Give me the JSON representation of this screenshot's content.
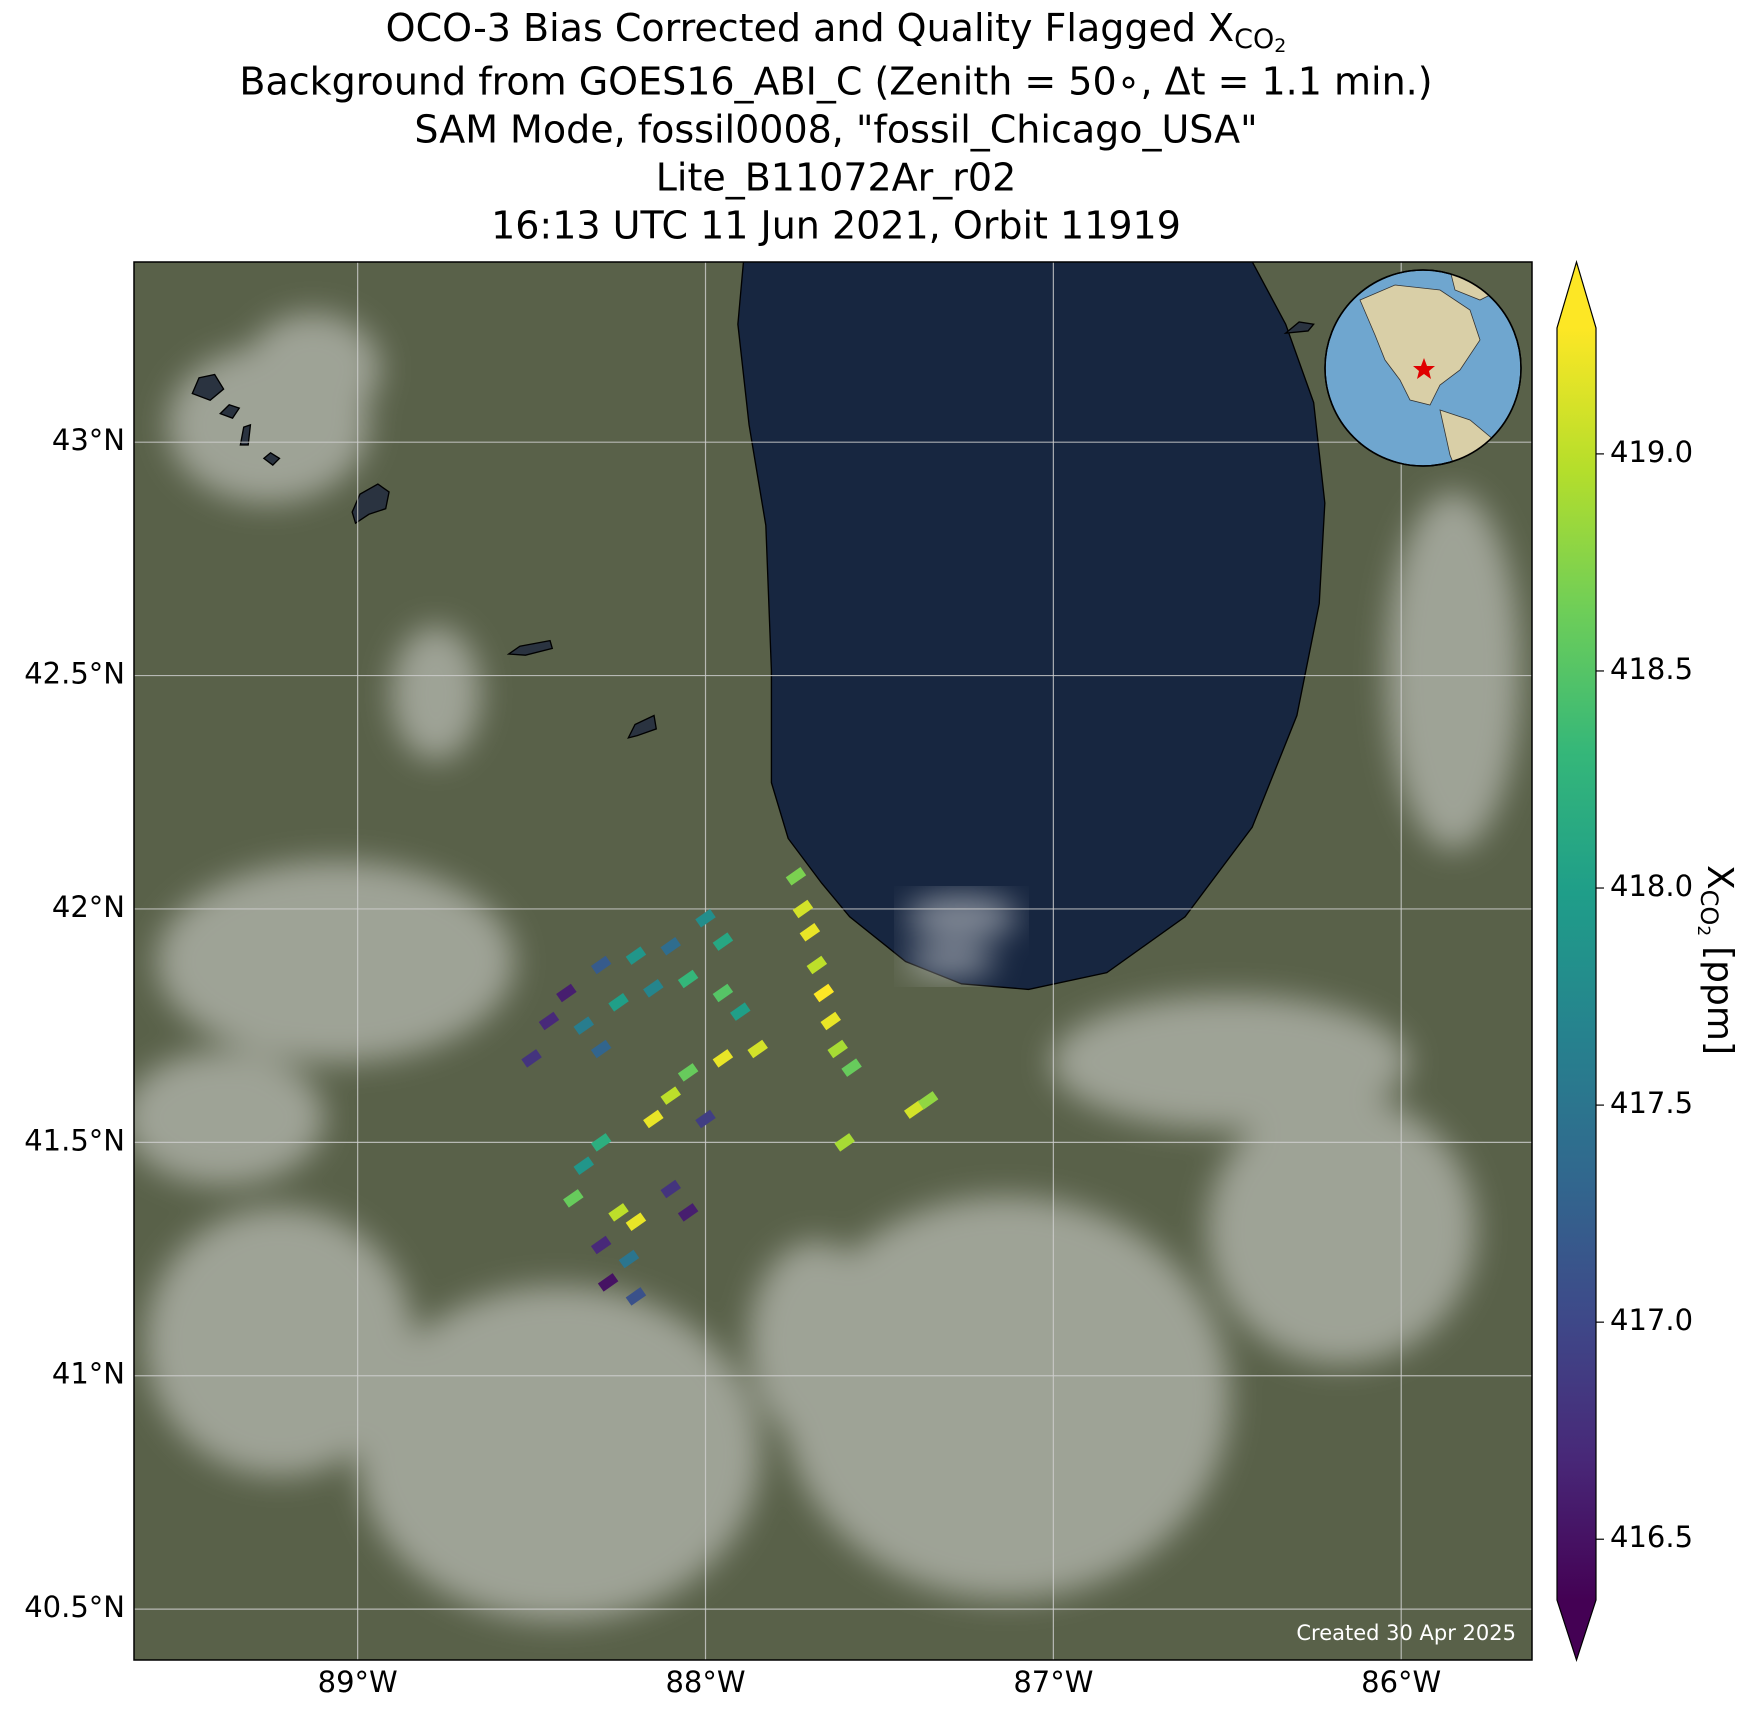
{
  "chart_data": {
    "type": "map",
    "title_line1": "OCO-3 Bias Corrected and Quality Flagged X",
    "title_sub": "CO",
    "title_subsub": "2",
    "title_lines": [
      "Background from GOES16_ABI_C (Zenith = 50∘, Δt =  1.1 min.)",
      "SAM Mode, fossil0008, \"fossil_Chicago_USA\"",
      "Lite_B11072Ar_r02",
      "16:13 UTC 11 Jun 2021, Orbit 11919"
    ],
    "xlim": [
      -89.643,
      -85.624
    ],
    "ylim": [
      40.391,
      43.386
    ],
    "xticks": [
      {
        "value": -89,
        "label": "89°W"
      },
      {
        "value": -88,
        "label": "88°W"
      },
      {
        "value": -87,
        "label": "87°W"
      },
      {
        "value": -86,
        "label": "86°W"
      }
    ],
    "yticks": [
      {
        "value": 40.5,
        "label": "40.5°N"
      },
      {
        "value": 41,
        "label": "41°N"
      },
      {
        "value": 41.5,
        "label": "41.5°N"
      },
      {
        "value": 42,
        "label": "42°N"
      },
      {
        "value": 42.5,
        "label": "42.5°N"
      },
      {
        "value": 43,
        "label": "43°N"
      }
    ],
    "grid": true,
    "colormap": "viridis",
    "clim": [
      416.36,
      419.29
    ],
    "cticks": [
      416.5,
      {
        "value": 417,
        "label": "417.0"
      },
      417.5,
      {
        "value": 418,
        "label": "418.0"
      },
      418.5,
      {
        "value": 419,
        "label": "419.0"
      }
    ],
    "colorbar_label": {
      "symbol": "X",
      "sub": "CO",
      "subsub": "2",
      "units": "[ppm]"
    },
    "footnote": "Created 30 Apr 2025",
    "soundings": {
      "lon": [
        -87.74,
        -87.72,
        -87.7,
        -87.68,
        -87.66,
        -87.64,
        -87.62,
        -87.58,
        -87.4,
        -87.36,
        -88.0,
        -87.95,
        -88.1,
        -88.2,
        -88.3,
        -88.4,
        -88.45,
        -88.35,
        -88.25,
        -88.15,
        -88.05,
        -87.95,
        -87.9,
        -88.5,
        -88.3,
        -87.95,
        -87.85,
        -88.05,
        -88.1,
        -88.0,
        -88.15,
        -88.3,
        -88.35,
        -88.38,
        -88.25,
        -88.2,
        -88.3,
        -88.22,
        -88.28,
        -88.2,
        -88.1,
        -88.05,
        -87.6
      ],
      "lat": [
        42.07,
        42.0,
        41.95,
        41.88,
        41.82,
        41.76,
        41.7,
        41.66,
        41.57,
        41.59,
        41.98,
        41.93,
        41.92,
        41.9,
        41.88,
        41.82,
        41.76,
        41.75,
        41.8,
        41.83,
        41.85,
        41.82,
        41.78,
        41.68,
        41.7,
        41.68,
        41.7,
        41.65,
        41.6,
        41.55,
        41.55,
        41.5,
        41.45,
        41.38,
        41.35,
        41.33,
        41.28,
        41.25,
        41.2,
        41.17,
        41.4,
        41.35,
        41.5
      ],
      "values": [
        418.7,
        419.1,
        419.2,
        419.0,
        419.3,
        419.2,
        418.9,
        418.6,
        419.1,
        418.8,
        417.8,
        418.1,
        417.4,
        417.9,
        417.2,
        416.6,
        416.7,
        417.6,
        418.0,
        417.7,
        418.3,
        418.5,
        418.0,
        416.8,
        417.3,
        419.2,
        419.1,
        418.6,
        419.0,
        416.9,
        419.2,
        418.2,
        417.9,
        418.6,
        419.0,
        419.2,
        416.7,
        417.5,
        416.5,
        417.1,
        416.8,
        416.6,
        418.9
      ]
    }
  }
}
